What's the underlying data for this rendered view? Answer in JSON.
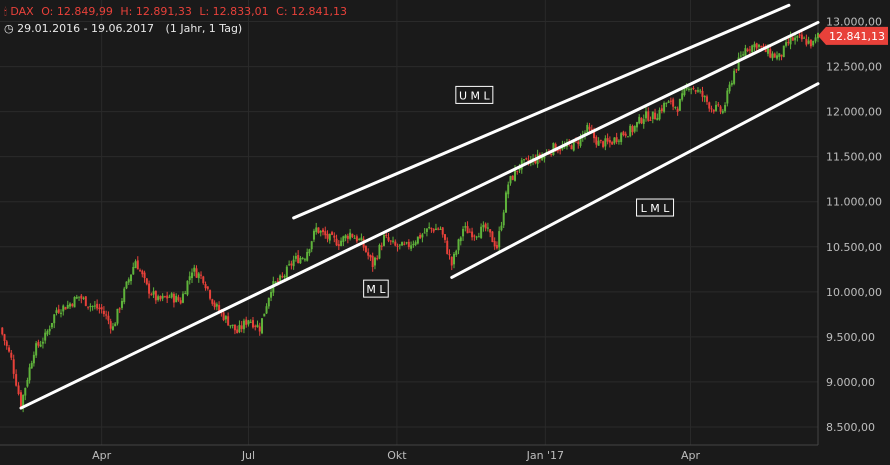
{
  "header": {
    "symbol": "DAX",
    "open_label": "O:",
    "open": "12.849,99",
    "high_label": "H:",
    "high": "12.891,33",
    "low_label": "L:",
    "low": "12.833,01",
    "close_label": "C:",
    "close": "12.841,13",
    "range": "29.01.2016 - 19.06.2017",
    "period": "(1 Jahr, 1 Tag)"
  },
  "colors": {
    "background": "#1a1a1a",
    "up": "#5fb33b",
    "down": "#e8413a",
    "channel": "#ffffff",
    "grid": "#2a2a2a",
    "last_price_tag": "#e8413a"
  },
  "chart_data": {
    "type": "candlestick",
    "instrument": "DAX",
    "x_tick_labels": [
      "Apr",
      "Jul",
      "Okt",
      "Jan '17",
      "Apr"
    ],
    "x_tick_dates": [
      "2016-04-01",
      "2016-07-01",
      "2016-10-01",
      "2017-01-01",
      "2017-04-01"
    ],
    "y_tick_labels": [
      "8.500,00",
      "9.000,00",
      "9.500,00",
      "10.000,00",
      "10.500,00",
      "11.000,00",
      "11.500,00",
      "12.000,00",
      "12.500,00",
      "13.000,00"
    ],
    "y_ticks": [
      8500,
      9000,
      9500,
      10000,
      10500,
      11000,
      11500,
      12000,
      12500,
      13000
    ],
    "ylim": [
      8300,
      13150
    ],
    "xlim": [
      "2016-01-29",
      "2017-06-19"
    ],
    "grid": true,
    "last_price": 12841.13,
    "last_price_label": "12.841,13",
    "closes": [
      {
        "d": "2016-01-29",
        "c": 9600
      },
      {
        "d": "2016-02-05",
        "c": 9250
      },
      {
        "d": "2016-02-11",
        "c": 8750
      },
      {
        "d": "2016-02-19",
        "c": 9350
      },
      {
        "d": "2016-02-26",
        "c": 9500
      },
      {
        "d": "2016-03-04",
        "c": 9800
      },
      {
        "d": "2016-03-11",
        "c": 9850
      },
      {
        "d": "2016-03-18",
        "c": 9950
      },
      {
        "d": "2016-03-25",
        "c": 9850
      },
      {
        "d": "2016-04-01",
        "c": 9800
      },
      {
        "d": "2016-04-08",
        "c": 9600
      },
      {
        "d": "2016-04-15",
        "c": 10000
      },
      {
        "d": "2016-04-22",
        "c": 10350
      },
      {
        "d": "2016-04-29",
        "c": 10050
      },
      {
        "d": "2016-05-06",
        "c": 9900
      },
      {
        "d": "2016-05-13",
        "c": 9950
      },
      {
        "d": "2016-05-20",
        "c": 9900
      },
      {
        "d": "2016-05-27",
        "c": 10250
      },
      {
        "d": "2016-06-03",
        "c": 10150
      },
      {
        "d": "2016-06-10",
        "c": 9850
      },
      {
        "d": "2016-06-17",
        "c": 9700
      },
      {
        "d": "2016-06-24",
        "c": 9550
      },
      {
        "d": "2016-07-01",
        "c": 9700
      },
      {
        "d": "2016-07-08",
        "c": 9600
      },
      {
        "d": "2016-07-15",
        "c": 10050
      },
      {
        "d": "2016-07-22",
        "c": 10150
      },
      {
        "d": "2016-07-29",
        "c": 10350
      },
      {
        "d": "2016-08-05",
        "c": 10400
      },
      {
        "d": "2016-08-12",
        "c": 10700
      },
      {
        "d": "2016-08-19",
        "c": 10600
      },
      {
        "d": "2016-08-26",
        "c": 10550
      },
      {
        "d": "2016-09-02",
        "c": 10650
      },
      {
        "d": "2016-09-09",
        "c": 10550
      },
      {
        "d": "2016-09-16",
        "c": 10300
      },
      {
        "d": "2016-09-23",
        "c": 10600
      },
      {
        "d": "2016-09-30",
        "c": 10500
      },
      {
        "d": "2016-10-07",
        "c": 10500
      },
      {
        "d": "2016-10-14",
        "c": 10600
      },
      {
        "d": "2016-10-21",
        "c": 10700
      },
      {
        "d": "2016-10-28",
        "c": 10700
      },
      {
        "d": "2016-11-04",
        "c": 10300
      },
      {
        "d": "2016-11-11",
        "c": 10700
      },
      {
        "d": "2016-11-18",
        "c": 10650
      },
      {
        "d": "2016-11-25",
        "c": 10700
      },
      {
        "d": "2016-12-02",
        "c": 10500
      },
      {
        "d": "2016-12-09",
        "c": 11200
      },
      {
        "d": "2016-12-16",
        "c": 11400
      },
      {
        "d": "2016-12-23",
        "c": 11450
      },
      {
        "d": "2016-12-30",
        "c": 11500
      },
      {
        "d": "2017-01-06",
        "c": 11600
      },
      {
        "d": "2017-01-13",
        "c": 11600
      },
      {
        "d": "2017-01-20",
        "c": 11650
      },
      {
        "d": "2017-01-27",
        "c": 11800
      },
      {
        "d": "2017-02-03",
        "c": 11650
      },
      {
        "d": "2017-02-10",
        "c": 11650
      },
      {
        "d": "2017-02-17",
        "c": 11750
      },
      {
        "d": "2017-02-24",
        "c": 11800
      },
      {
        "d": "2017-03-03",
        "c": 11950
      },
      {
        "d": "2017-03-10",
        "c": 11950
      },
      {
        "d": "2017-03-17",
        "c": 12100
      },
      {
        "d": "2017-03-24",
        "c": 12050
      },
      {
        "d": "2017-03-31",
        "c": 12300
      },
      {
        "d": "2017-04-07",
        "c": 12200
      },
      {
        "d": "2017-04-14",
        "c": 12050
      },
      {
        "d": "2017-04-21",
        "c": 12000
      },
      {
        "d": "2017-04-28",
        "c": 12450
      },
      {
        "d": "2017-05-05",
        "c": 12700
      },
      {
        "d": "2017-05-12",
        "c": 12750
      },
      {
        "d": "2017-05-19",
        "c": 12650
      },
      {
        "d": "2017-05-26",
        "c": 12600
      },
      {
        "d": "2017-06-02",
        "c": 12800
      },
      {
        "d": "2017-06-09",
        "c": 12800
      },
      {
        "d": "2017-06-16",
        "c": 12750
      },
      {
        "d": "2017-06-19",
        "c": 12841.13
      }
    ],
    "channel_lines": [
      {
        "name": "U M L",
        "from": {
          "d": "2016-07-29",
          "v": 10820
        },
        "to": {
          "d": "2017-06-01",
          "v": 13180
        }
      },
      {
        "name": "M L",
        "from": {
          "d": "2016-02-11",
          "v": 8710
        },
        "to": {
          "d": "2017-06-19",
          "v": 12990
        }
      },
      {
        "name": "L M L",
        "from": {
          "d": "2016-11-04",
          "v": 10160
        },
        "to": {
          "d": "2017-06-19",
          "v": 12310
        }
      }
    ],
    "annotations": [
      {
        "text": "U M L",
        "d": "2016-11-18",
        "v": 12180
      },
      {
        "text": "M L",
        "d": "2016-09-18",
        "v": 10030
      },
      {
        "text": "L M L",
        "d": "2017-03-10",
        "v": 10930
      }
    ]
  }
}
